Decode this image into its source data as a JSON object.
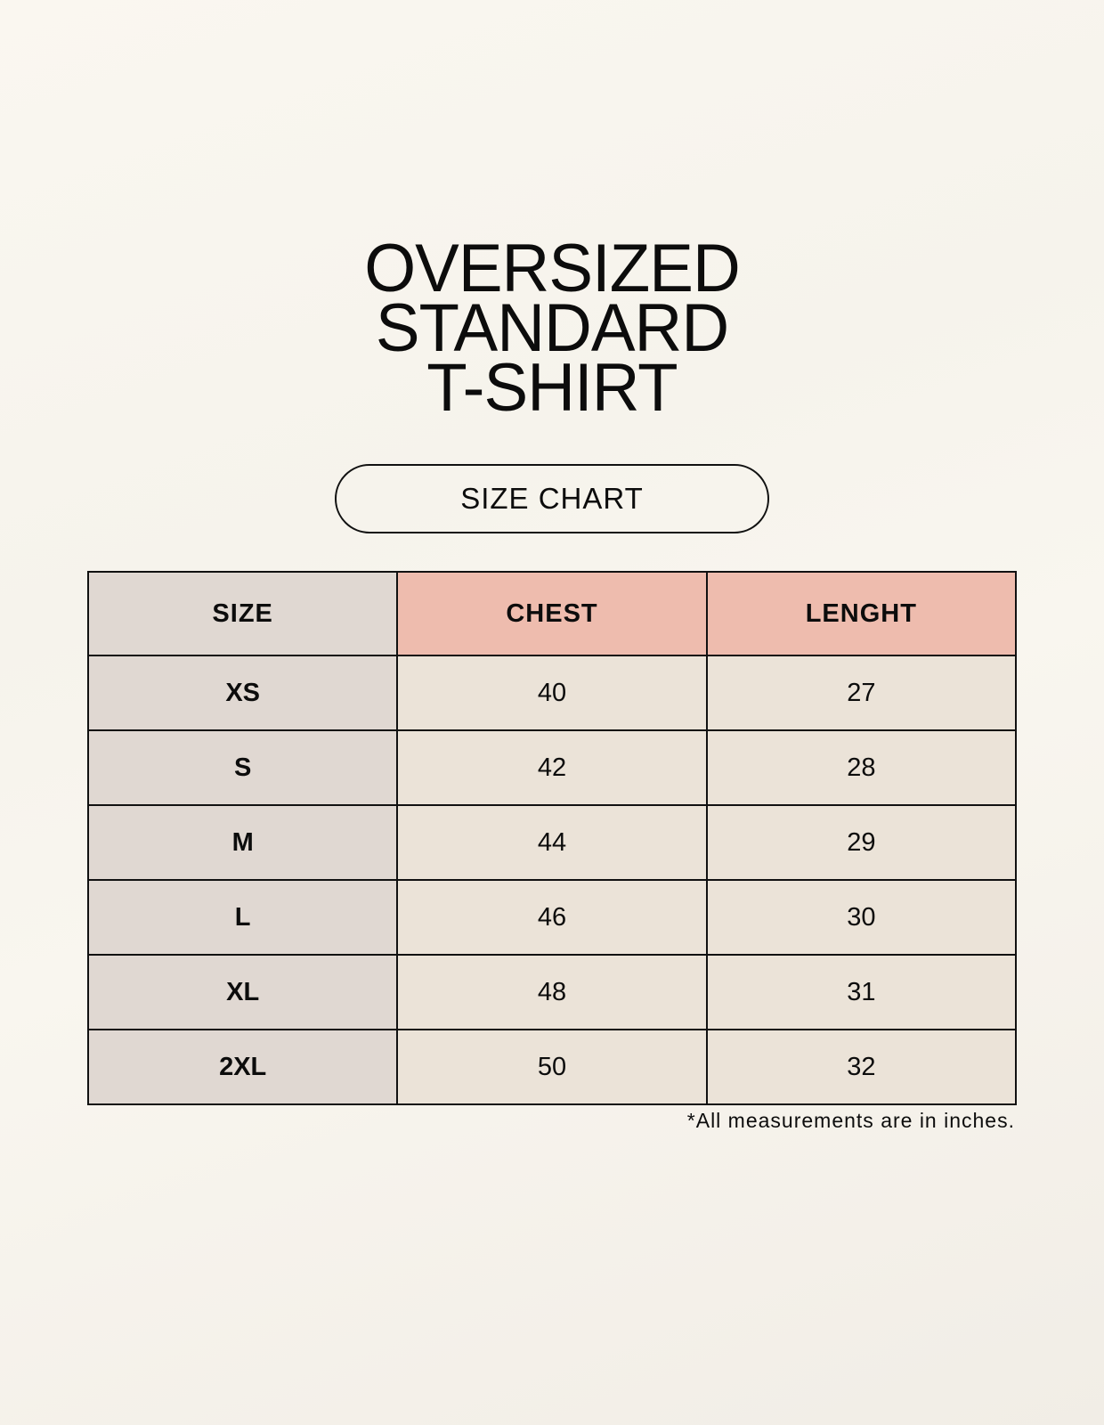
{
  "title": [
    "OVERSIZED",
    "STANDARD",
    "T-SHIRT"
  ],
  "badge": "SIZE CHART",
  "table": {
    "headers": [
      "SIZE",
      "CHEST",
      "LENGHT"
    ],
    "rows": [
      [
        "XS",
        "40",
        "27"
      ],
      [
        "S",
        "42",
        "28"
      ],
      [
        "M",
        "44",
        "29"
      ],
      [
        "L",
        "46",
        "30"
      ],
      [
        "XL",
        "48",
        "31"
      ],
      [
        "2XL",
        "50",
        "32"
      ]
    ]
  },
  "footnote": "*All measurements are in inches.",
  "colors": {
    "background": "#f8f5ee",
    "size_column": "#e0d8d2",
    "header_accent": "#eebcae",
    "cell": "#ebe3d8"
  }
}
